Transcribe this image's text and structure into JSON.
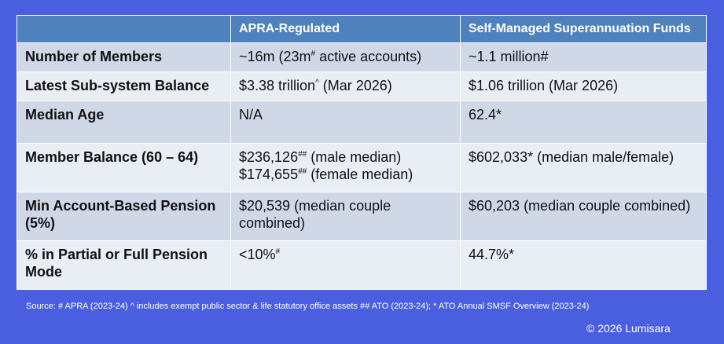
{
  "table": {
    "headers": [
      "",
      "APRA-Regulated",
      "Self-Managed Superannuation Funds"
    ],
    "rows": [
      {
        "label": "Number of Members",
        "apra": [
          {
            "pre": "~16m (23m",
            "sup": "#",
            "post": " active accounts)"
          }
        ],
        "smsf": [
          {
            "pre": "~1.1 million#",
            "sup": "",
            "post": ""
          }
        ]
      },
      {
        "label": "Latest Sub-system Balance",
        "apra": [
          {
            "pre": "$3.38 trillion",
            "sup": "^",
            "post": " (Mar 2026)"
          }
        ],
        "smsf": [
          {
            "pre": "$1.06 trillion (Mar 2026)",
            "sup": "",
            "post": ""
          }
        ]
      },
      {
        "label": "Median Age",
        "apra": [
          {
            "pre": "N/A",
            "sup": "",
            "post": ""
          }
        ],
        "smsf": [
          {
            "pre": "62.4*",
            "sup": "",
            "post": ""
          }
        ]
      },
      {
        "label": "Member Balance (60 – 64)",
        "apra": [
          {
            "pre": "$236,126",
            "sup": "##",
            "post": " (male median)"
          },
          {
            "pre": "$174,655",
            "sup": "##",
            "post": " (female median)"
          }
        ],
        "smsf": [
          {
            "pre": "$602,033* (median male/female)",
            "sup": "",
            "post": ""
          }
        ]
      },
      {
        "label": "Min Account-Based Pension (5%)",
        "apra": [
          {
            "pre": "$20,539 (median couple combined)",
            "sup": "",
            "post": ""
          }
        ],
        "smsf": [
          {
            "pre": "$60,203 (median couple combined)",
            "sup": "",
            "post": ""
          }
        ]
      },
      {
        "label": "% in Partial or Full Pension Mode",
        "apra": [
          {
            "pre": "<10%",
            "sup": "#",
            "post": ""
          }
        ],
        "smsf": [
          {
            "pre": "44.7%*",
            "sup": "",
            "post": ""
          }
        ]
      }
    ]
  },
  "source_note": "Source:  # APRA (2023-24)  ^ includes exempt public sector & life statutory office assets  ## ATO (2023-24);  * ATO Annual SMSF Overview (2023-24)",
  "copyright": "©  2026 Lumisara",
  "colors": {
    "background": "#4a5fe0",
    "header": "#4f81bd",
    "row_odd": "#d0d8e8",
    "row_even": "#e9edf4"
  }
}
